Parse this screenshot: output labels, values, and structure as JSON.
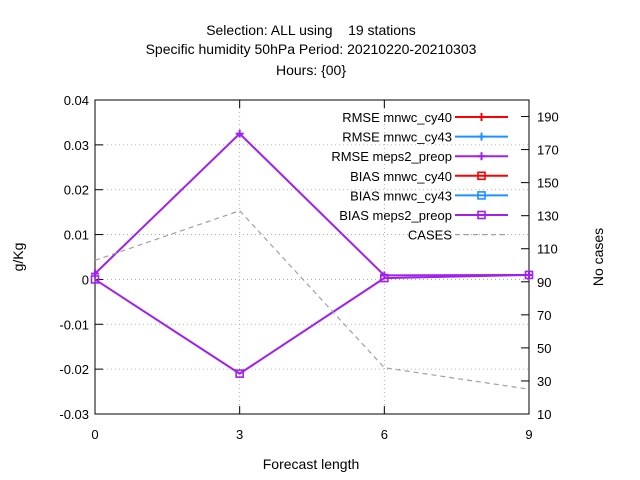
{
  "chart_data": {
    "type": "line",
    "title_lines": [
      "Selection: ALL using    19 stations",
      "Specific humidity 50hPa   Period: 20210220-20210303",
      "Hours: {00}"
    ],
    "xlabel": "Forecast length",
    "ylabel": "g/Kg",
    "y2label": "No cases",
    "x": [
      0,
      3,
      6,
      9
    ],
    "xticks": [
      "0",
      "3",
      "6",
      "9"
    ],
    "xlim": [
      0,
      9
    ],
    "ylim": [
      -0.03,
      0.04
    ],
    "yticks": [
      "0.04",
      "0.03",
      "0.02",
      "0.01",
      "0",
      "-0.01",
      "-0.02",
      "-0.03"
    ],
    "y2lim": [
      10,
      200
    ],
    "y2ticks": [
      "190",
      "170",
      "150",
      "130",
      "110",
      "90",
      "70",
      "50",
      "30",
      "10"
    ],
    "grid": true,
    "legend_position": "top-right",
    "series": [
      {
        "name": "RMSE mnwc_cy40",
        "axis": "y",
        "color": "#ff0000",
        "marker": "plus",
        "values": [
          null,
          null,
          null,
          null
        ]
      },
      {
        "name": "RMSE mnwc_cy43",
        "axis": "y",
        "color": "#1e90ff",
        "marker": "plus",
        "values": [
          null,
          null,
          null,
          null
        ]
      },
      {
        "name": "RMSE meps2_preop",
        "axis": "y",
        "color": "#a020f0",
        "marker": "plus",
        "values": [
          0.0013,
          0.0325,
          0.0009,
          0.001
        ]
      },
      {
        "name": "BIAS mnwc_cy40",
        "axis": "y",
        "color": "#ff0000",
        "marker": "square",
        "values": [
          null,
          null,
          null,
          null
        ]
      },
      {
        "name": "BIAS mnwc_cy43",
        "axis": "y",
        "color": "#1e90ff",
        "marker": "square",
        "values": [
          null,
          null,
          null,
          null
        ]
      },
      {
        "name": "BIAS meps2_preop",
        "axis": "y",
        "color": "#a020f0",
        "marker": "square",
        "values": [
          0.0,
          -0.021,
          0.0003,
          0.001
        ]
      },
      {
        "name": "CASES",
        "axis": "y2",
        "color": "#a0a0a0",
        "marker": "none",
        "dashed": true,
        "values": [
          103,
          133,
          38,
          25
        ]
      }
    ]
  }
}
